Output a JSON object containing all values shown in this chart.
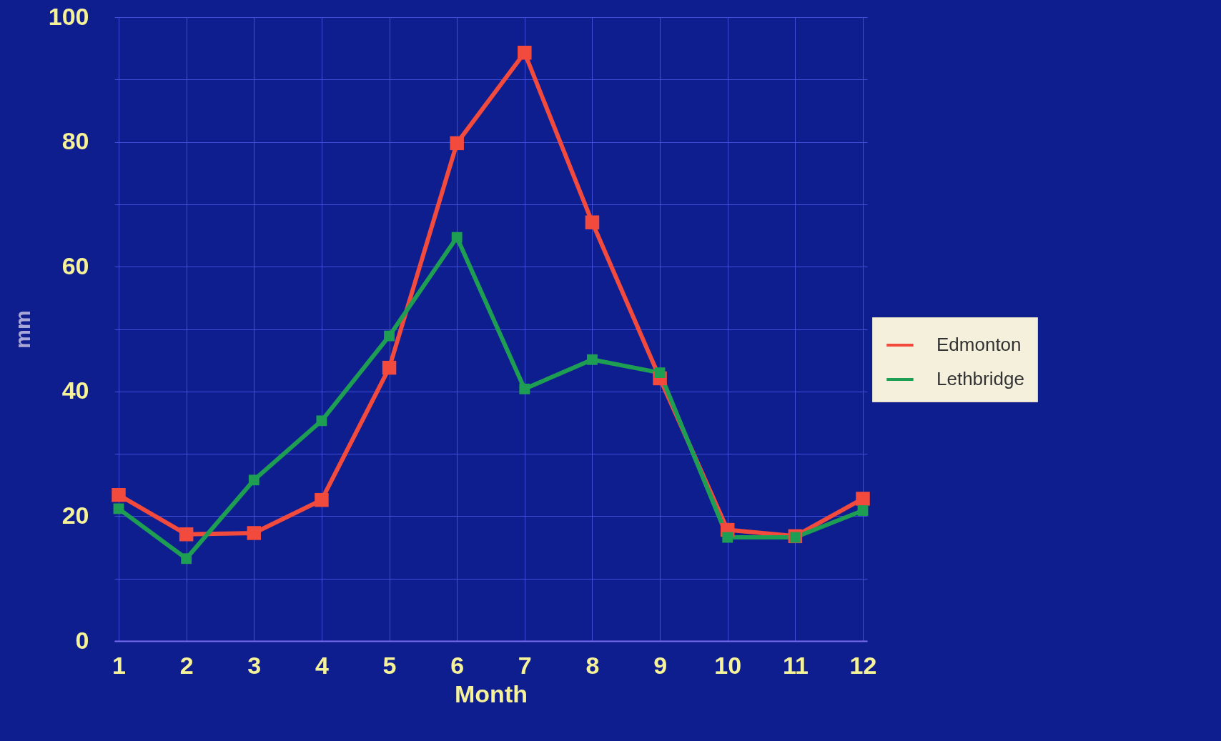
{
  "chart_data": {
    "type": "line",
    "xlabel": "Month",
    "ylabel": "mm",
    "x": [
      1,
      2,
      3,
      4,
      5,
      6,
      7,
      8,
      9,
      10,
      11,
      12
    ],
    "series": [
      {
        "name": "Edmonton",
        "color": "#f24a3c",
        "values": [
          23.4,
          17.1,
          17.3,
          22.6,
          43.8,
          79.8,
          94.3,
          67.1,
          42.1,
          17.8,
          16.8,
          22.8
        ]
      },
      {
        "name": "Lethbridge",
        "color": "#1e9e52",
        "values": [
          21.2,
          13.2,
          25.8,
          35.3,
          48.9,
          64.7,
          40.4,
          45.1,
          43.0,
          16.6,
          16.6,
          20.9
        ]
      }
    ],
    "xlim": [
      1,
      12
    ],
    "xticks": [
      1,
      2,
      3,
      4,
      5,
      6,
      7,
      8,
      9,
      10,
      11,
      12
    ],
    "ylim": [
      0,
      100
    ],
    "yticks": [
      0,
      {
        "value": 10,
        "label": null
      },
      20,
      {
        "value": 30,
        "label": null
      },
      40,
      {
        "value": 50,
        "label": null
      },
      60,
      {
        "value": 70,
        "label": null
      },
      80,
      {
        "value": 90,
        "label": null
      },
      100
    ],
    "grid": true,
    "legend": "right",
    "marker": "square",
    "line_style": "solid"
  }
}
